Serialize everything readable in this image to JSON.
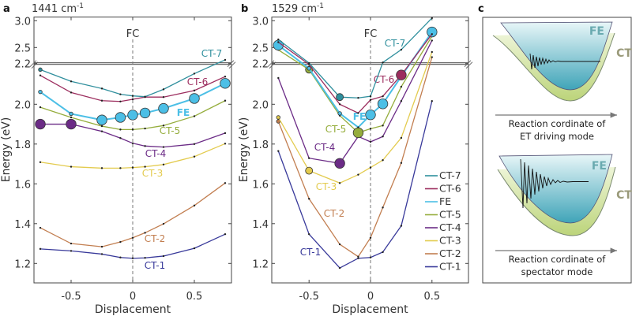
{
  "chart_data": [
    {
      "panel": "a",
      "type": "line",
      "title": "1441 cm⁻¹",
      "xlabel": "Displacement",
      "ylabel": "Energy (eV)",
      "xlim": [
        -0.8,
        0.8
      ],
      "ylim": [
        1.1,
        3.07
      ],
      "y_axis_break": 2.2,
      "xticks": [
        "-0.5",
        "0",
        "0.5"
      ],
      "xtick_values": [
        -0.5,
        0,
        0.5
      ],
      "yticks": [
        "3.0",
        "2.5",
        "2.2",
        "2.0",
        "1.8",
        "1.6",
        "1.4",
        "1.2"
      ],
      "ytick_values": [
        3.0,
        2.5,
        2.2,
        2.0,
        1.8,
        1.6,
        1.4,
        1.2
      ],
      "annotation": "FC",
      "x": [
        -0.75,
        -0.5,
        -0.25,
        -0.1,
        0,
        0.1,
        0.25,
        0.5,
        0.75
      ],
      "series": [
        {
          "name": "CT-7",
          "color": "#2f8f9d",
          "values": [
            2.174,
            2.115,
            2.079,
            2.05,
            2.042,
            2.038,
            2.075,
            2.154,
            2.27
          ],
          "markers": [
            [
              -0.75,
              "small"
            ]
          ]
        },
        {
          "name": "CT-6",
          "color": "#9c2d5e",
          "values": [
            2.145,
            2.059,
            2.018,
            2.014,
            2.025,
            2.036,
            2.036,
            2.069,
            2.139
          ],
          "markers": []
        },
        {
          "name": "FE",
          "color": "#4cbfe6",
          "values": [
            2.062,
            1.952,
            1.921,
            1.934,
            1.946,
            1.956,
            1.979,
            2.029,
            2.105
          ],
          "markers": [
            [
              -0.75,
              "small"
            ],
            [
              -0.5,
              "small"
            ],
            [
              -0.25,
              "large"
            ],
            [
              -0.1,
              "large"
            ],
            [
              0,
              "large"
            ],
            [
              0.1,
              "large"
            ],
            [
              0.25,
              "large"
            ],
            [
              0.5,
              "large"
            ],
            [
              0.75,
              "large"
            ]
          ]
        },
        {
          "name": "CT-5",
          "color": "#95ad3c",
          "values": [
            1.985,
            1.934,
            1.89,
            1.873,
            1.873,
            1.878,
            1.893,
            1.94,
            2.018
          ],
          "markers": []
        },
        {
          "name": "CT-4",
          "color": "#6b2b86",
          "values": [
            1.9,
            1.9,
            1.864,
            1.83,
            1.804,
            1.79,
            1.785,
            1.8,
            1.855
          ],
          "markers": [
            [
              -0.75,
              "large"
            ],
            [
              -0.5,
              "large"
            ]
          ]
        },
        {
          "name": "CT-3",
          "color": "#e3cb4e",
          "values": [
            1.709,
            1.686,
            1.679,
            1.679,
            1.682,
            1.686,
            1.697,
            1.737,
            1.802
          ],
          "markers": []
        },
        {
          "name": "CT-2",
          "color": "#c27e50",
          "values": [
            1.379,
            1.3,
            1.284,
            1.308,
            1.329,
            1.354,
            1.399,
            1.491,
            1.604
          ],
          "markers": []
        },
        {
          "name": "CT-1",
          "color": "#38399a",
          "values": [
            1.273,
            1.263,
            1.247,
            1.23,
            1.226,
            1.228,
            1.237,
            1.276,
            1.347
          ],
          "markers": []
        }
      ]
    },
    {
      "panel": "b",
      "type": "line",
      "title": "1529 cm⁻¹",
      "xlabel": "Displacement",
      "ylabel": "Energy (eV)",
      "xlim": [
        -0.8,
        0.8
      ],
      "ylim": [
        1.1,
        3.07
      ],
      "y_axis_break": 2.2,
      "xticks": [
        "-0.5",
        "0",
        "0.5"
      ],
      "xtick_values": [
        -0.5,
        0,
        0.5
      ],
      "yticks": [
        "3.0",
        "2.5",
        "2.2",
        "2.0",
        "1.8",
        "1.6",
        "1.4",
        "1.2"
      ],
      "ytick_values": [
        3.0,
        2.5,
        2.2,
        2.0,
        1.8,
        1.6,
        1.4,
        1.2
      ],
      "annotation": "FC",
      "legend": "right",
      "x": [
        -0.75,
        -0.5,
        -0.25,
        -0.1,
        0,
        0.1,
        0.25,
        0.5
      ],
      "series": [
        {
          "name": "CT-7",
          "color": "#2f8f9d",
          "values": [
            2.65,
            2.21,
            2.036,
            2.032,
            2.04,
            2.22,
            2.46,
            3.05
          ],
          "markers": [
            [
              -0.25,
              "medium"
            ]
          ]
        },
        {
          "name": "CT-6",
          "color": "#9c2d5e",
          "values": [
            2.6,
            2.2,
            2.0,
            1.956,
            2.022,
            2.04,
            2.147,
            2.75
          ],
          "markers": [
            [
              0.25,
              "large"
            ]
          ]
        },
        {
          "name": "FE",
          "color": "#4cbfe6",
          "values": [
            2.544,
            2.18,
            1.954,
            1.884,
            1.947,
            2.002,
            2.14,
            2.79
          ],
          "markers": [
            [
              -0.75,
              "large"
            ],
            [
              -0.5,
              "small"
            ],
            [
              -0.25,
              "small"
            ],
            [
              0,
              "large"
            ],
            [
              0.1,
              "large"
            ],
            [
              0.5,
              "large"
            ]
          ]
        },
        {
          "name": "CT-5",
          "color": "#95ad3c",
          "values": [
            2.456,
            2.174,
            1.943,
            1.857,
            1.877,
            1.893,
            2.088,
            2.71
          ],
          "markers": [
            [
              -0.5,
              "medium"
            ],
            [
              -0.1,
              "large"
            ]
          ]
        },
        {
          "name": "CT-4",
          "color": "#6b2b86",
          "values": [
            2.132,
            1.729,
            1.703,
            1.838,
            1.811,
            1.838,
            2.016,
            2.63
          ],
          "markers": [
            [
              -0.25,
              "large"
            ]
          ]
        },
        {
          "name": "CT-3",
          "color": "#e3cb4e",
          "values": [
            1.934,
            1.666,
            1.604,
            1.646,
            1.682,
            1.719,
            1.831,
            2.416
          ],
          "markers": [
            [
              -0.75,
              "small"
            ],
            [
              -0.5,
              "medium"
            ]
          ]
        },
        {
          "name": "CT-2",
          "color": "#c27e50",
          "values": [
            1.914,
            1.525,
            1.296,
            1.234,
            1.329,
            1.481,
            1.705,
            2.32
          ],
          "markers": [
            [
              -0.75,
              "small"
            ]
          ]
        },
        {
          "name": "CT-1",
          "color": "#38399a",
          "values": [
            1.765,
            1.347,
            1.177,
            1.226,
            1.23,
            1.257,
            1.389,
            2.016
          ],
          "markers": []
        }
      ]
    }
  ],
  "panels": {
    "a": {
      "label": "a",
      "freq_base": "1441 cm",
      "freq_exp": "-1"
    },
    "b": {
      "label": "b",
      "freq_base": "1529 cm",
      "freq_exp": "-1"
    },
    "c": {
      "label": "c",
      "top": {
        "fe": "FE",
        "ct": "CT",
        "caption1": "Reaction cordinate of",
        "caption2": "ET driving mode"
      },
      "bottom": {
        "fe": "FE",
        "ct": "CT",
        "caption1": "Reaction cordinate of",
        "caption2": "spectator mode"
      },
      "colors": {
        "fe_fill": "#4aaec0",
        "ct_fill": "#c8dc8a",
        "fe_label": "#6aaab0",
        "ct_label": "#9a9a7a"
      }
    }
  }
}
